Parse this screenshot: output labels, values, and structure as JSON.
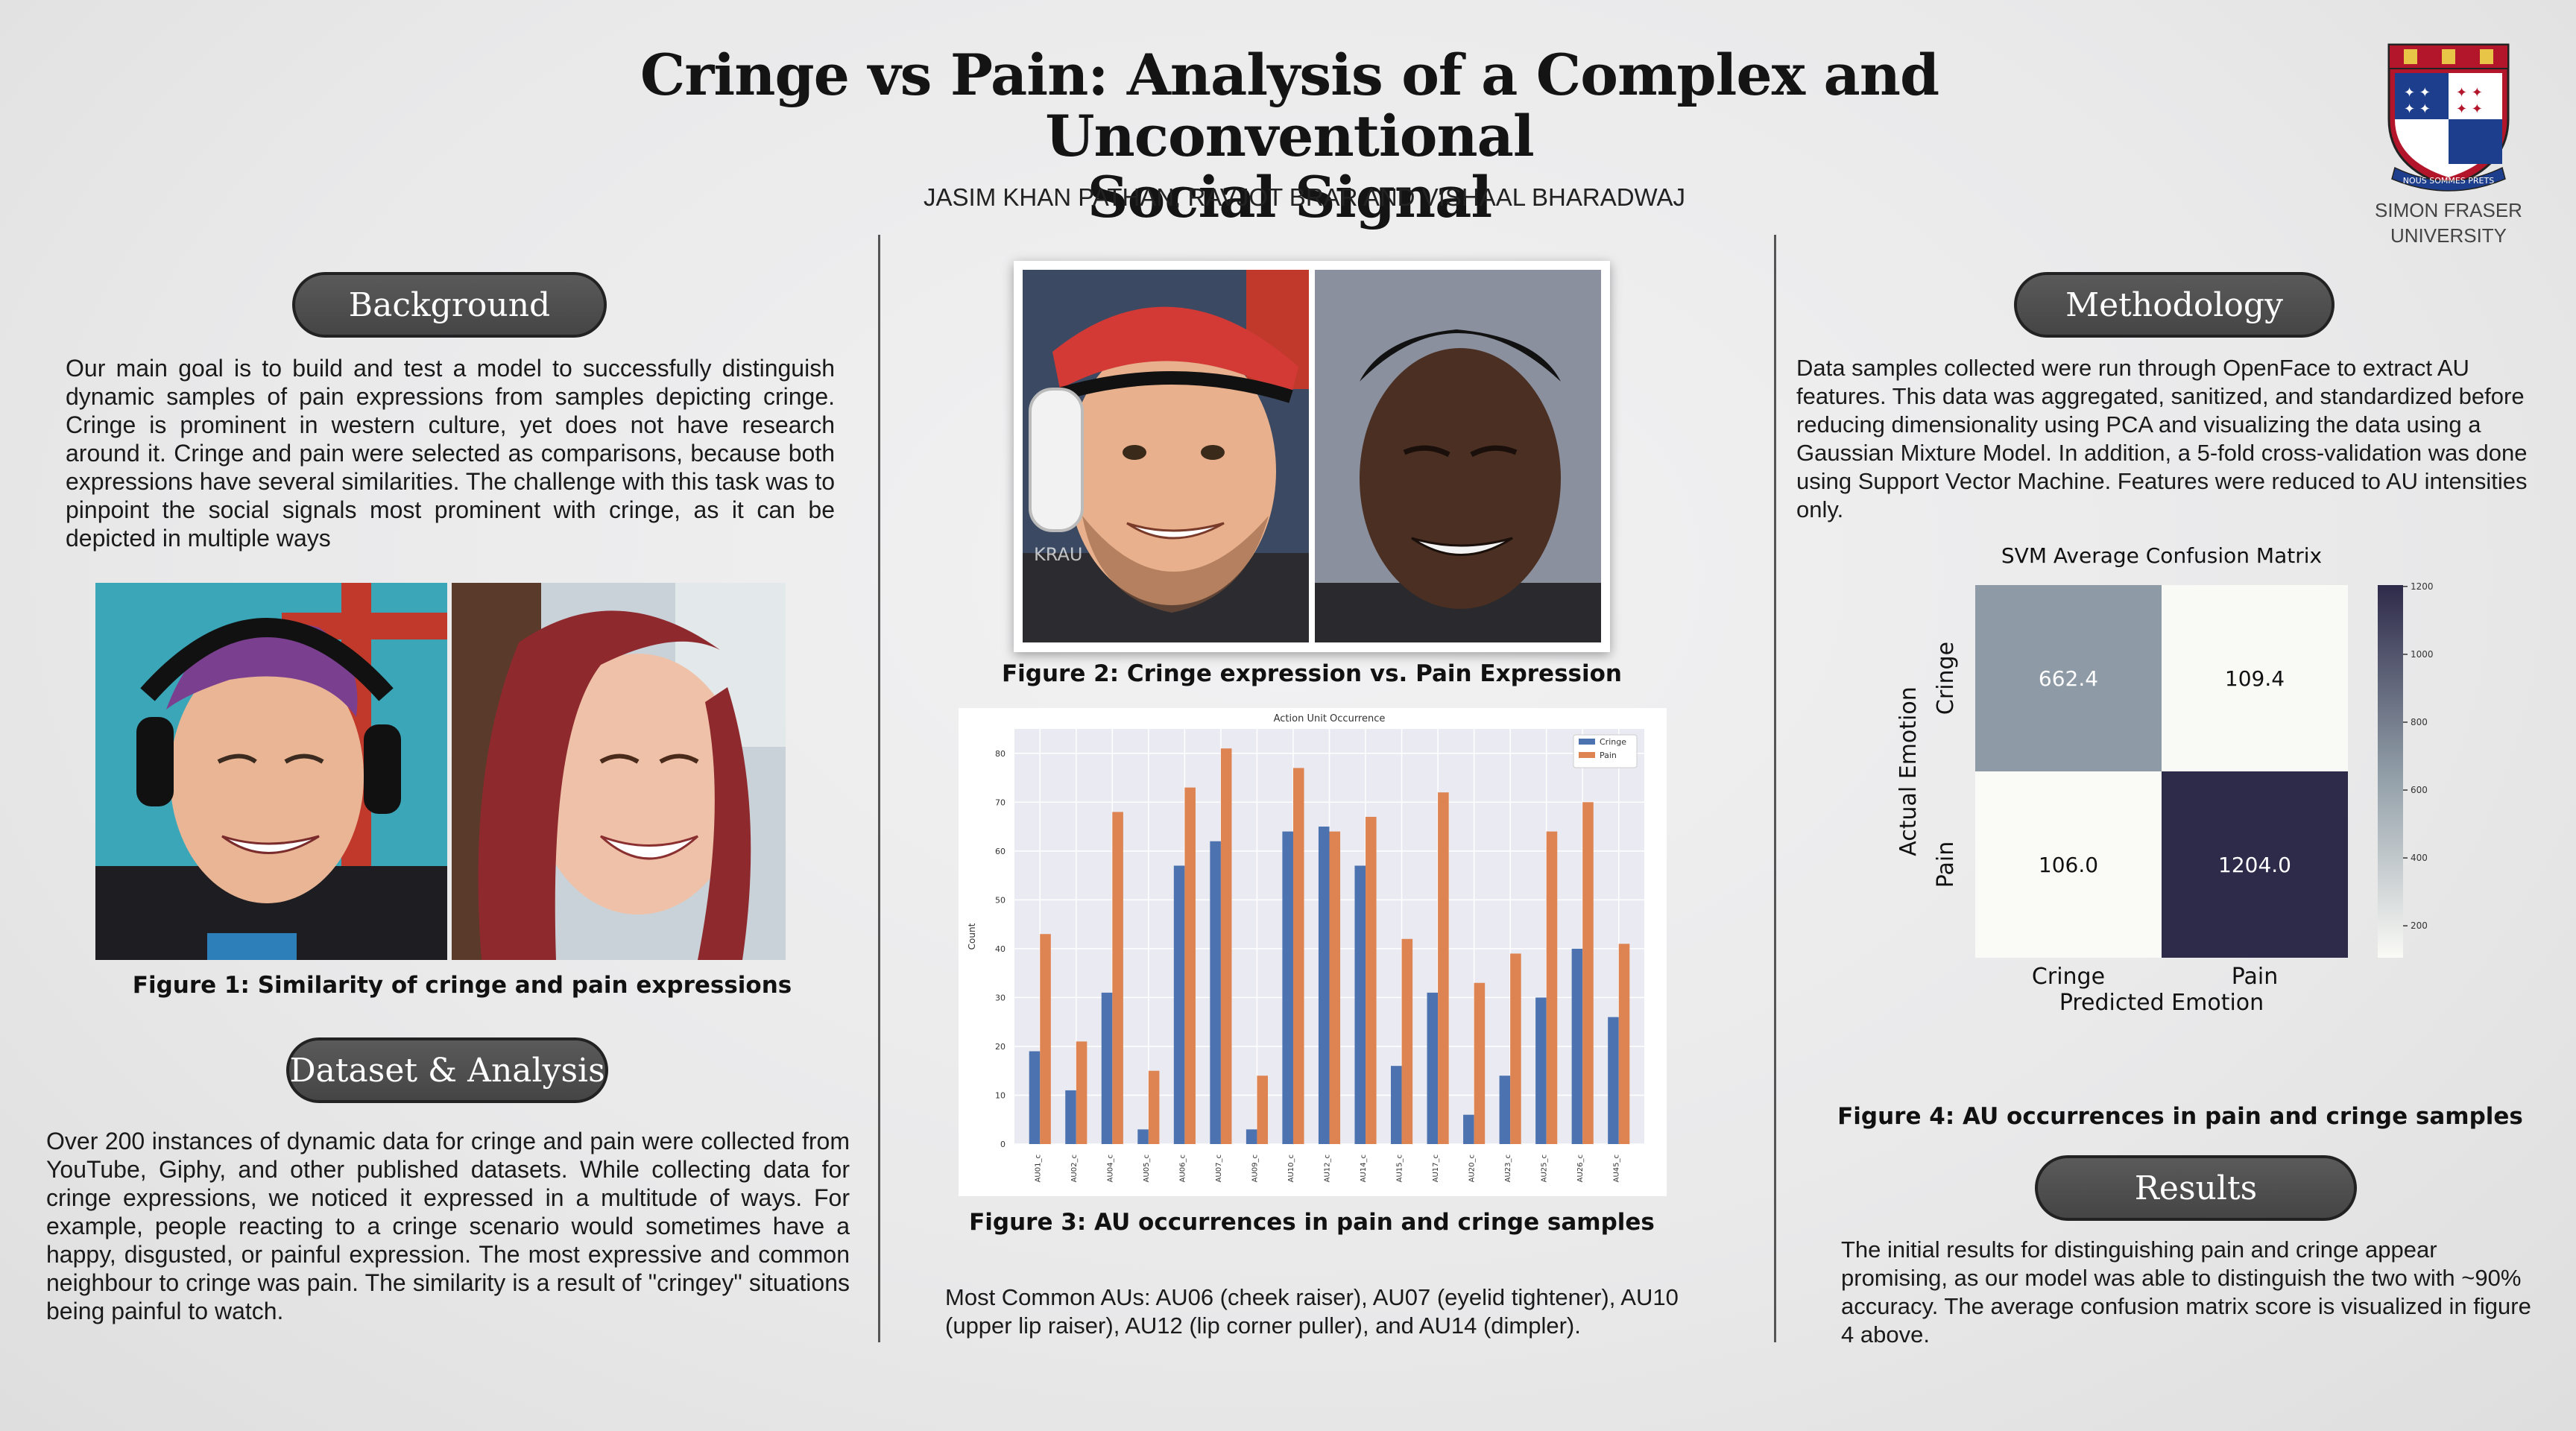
{
  "header": {
    "title_line1": "Cringe vs Pain: Analysis of a Complex and Unconventional",
    "title_line2": "Social Signal",
    "authors": "JASIM KHAN PATHAN, RAVJOT BRAR AND VISHAAL BHARADWAJ",
    "university_line1": "SIMON FRASER",
    "university_line2": "UNIVERSITY",
    "logo_motto": "NOUS SOMMES PRETS"
  },
  "background": {
    "heading": "Background",
    "text": "Our main goal is to build and test a model to successfully distinguish dynamic samples of pain expressions from samples depicting cringe. Cringe is  prominent in western culture, yet does not have research around it. Cringe and pain were selected as comparisons, because both expressions have several similarities. The challenge with this task was to pinpoint the social signals most prominent with cringe, as it can be depicted in multiple ways",
    "figure_caption": "Figure 1: Similarity of cringe and pain expressions"
  },
  "dataset": {
    "heading": "Dataset & Analysis",
    "text": "Over 200 instances of dynamic data for cringe and pain were collected from YouTube, Giphy, and other published datasets. While collecting data for cringe expressions, we noticed it expressed in a multitude of ways. For example, people reacting to a cringe scenario would sometimes have a happy, disgusted, or painful expression. The most expressive and common neighbour to cringe was pain. The similarity is a result of  \"cringey\" situations being painful to watch."
  },
  "center": {
    "figure2_caption": "Figure 2: Cringe expression vs. Pain Expression",
    "figure3_caption": "Figure 3: AU occurrences in pain and cringe samples",
    "common_aus": "Most Common AUs:  AU06 (cheek raiser), AU07 (eyelid tightener), AU10 (upper lip raiser), AU12 (lip corner puller), and AU14 (dimpler).",
    "photo_overlay_text": "KRAU"
  },
  "methodology": {
    "heading": "Methodology",
    "text": "Data samples collected were run through OpenFace to extract AU features. This data was aggregated, sanitized, and standardized before reducing dimensionality using PCA and visualizing the data using a Gaussian Mixture Model. In addition, a 5-fold cross-validation was done using Support Vector Machine. Features were reduced to AU intensities only.",
    "figure4_caption": "Figure 4: AU occurrences in pain and cringe samples"
  },
  "results": {
    "heading": "Results",
    "text": "The initial results for distinguishing pain and cringe appear promising, as our model was able to distinguish the two with ~90% accuracy. The average confusion matrix score is visualized in figure 4 above."
  },
  "colors": {
    "cringe_bar": "#4c72b0",
    "pain_bar": "#dd8452",
    "cm_low": "#fafaf6",
    "cm_high": "#2e2a4a"
  },
  "chart_data": [
    {
      "type": "bar",
      "title": "Action Unit Occurrence",
      "xlabel": "",
      "ylabel": "Count",
      "categories": [
        "AU01_c",
        "AU02_c",
        "AU04_c",
        "AU05_c",
        "AU06_c",
        "AU07_c",
        "AU09_c",
        "AU10_c",
        "AU12_c",
        "AU14_c",
        "AU15_c",
        "AU17_c",
        "AU20_c",
        "AU23_c",
        "AU25_c",
        "AU26_c",
        "AU45_c"
      ],
      "series": [
        {
          "name": "Cringe",
          "values": [
            19,
            11,
            31,
            3,
            57,
            62,
            3,
            64,
            65,
            57,
            16,
            31,
            6,
            14,
            30,
            40,
            26
          ]
        },
        {
          "name": "Pain",
          "values": [
            43,
            21,
            68,
            15,
            73,
            81,
            14,
            77,
            64,
            67,
            42,
            72,
            33,
            39,
            64,
            70,
            41
          ]
        }
      ],
      "ylim": [
        0,
        85
      ],
      "yticks": [
        0,
        10,
        20,
        30,
        40,
        50,
        60,
        70,
        80
      ],
      "grid": true,
      "legend": "top-right"
    },
    {
      "type": "heatmap",
      "title": "SVM Average Confusion Matrix",
      "xlabel": "Predicted Emotion",
      "ylabel": "Actual Emotion",
      "x_categories": [
        "Cringe",
        "Pain"
      ],
      "y_categories": [
        "Cringe",
        "Pain"
      ],
      "values": [
        [
          662.4,
          109.4
        ],
        [
          106.0,
          1204.0
        ]
      ],
      "colorbar_ticks": [
        200,
        400,
        600,
        800,
        1000,
        1200
      ],
      "colorbar_range": [
        106,
        1204
      ]
    }
  ]
}
